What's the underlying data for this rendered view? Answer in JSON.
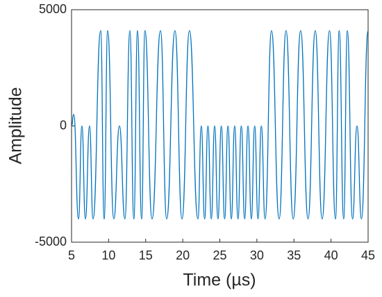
{
  "chart_data": {
    "type": "line",
    "xlabel": "Time (µs)",
    "ylabel": "Amplitude",
    "xlim": [
      5,
      45
    ],
    "xticks": [
      5,
      10,
      15,
      20,
      25,
      30,
      35,
      40,
      45
    ],
    "ylim": [
      -5000,
      5000
    ],
    "yticks": [
      -5000,
      0,
      5000
    ],
    "series": [
      {
        "color": "#0072bd",
        "x": [
          5,
          5.3,
          5.94,
          6.4,
          6.87,
          7.43,
          7.9,
          8.93,
          9.4,
          9.87,
          10.7,
          11.46,
          12.2,
          12.87,
          13.4,
          13.9,
          14.45,
          14.9,
          15.86,
          17.0,
          17.83,
          18.95,
          19.9,
          20.9,
          22.05,
          22.5,
          22.95,
          23.4,
          23.85,
          24.3,
          24.75,
          25.2,
          25.65,
          26.1,
          26.55,
          27.0,
          27.45,
          27.9,
          28.35,
          28.8,
          29.25,
          29.7,
          30.15,
          30.6,
          31.1,
          31.97,
          33.0,
          33.93,
          34.9,
          35.9,
          36.9,
          37.87,
          38.8,
          39.8,
          40.6,
          41.1,
          41.7,
          42.2,
          42.9,
          43.5,
          44.1,
          45
        ],
        "values": [
          0,
          500,
          -4000,
          0,
          -4000,
          0,
          -4000,
          4100,
          -4000,
          4100,
          -4000,
          0,
          -4000,
          4100,
          -4000,
          4100,
          -4000,
          4100,
          -4000,
          4100,
          -4000,
          4100,
          -4000,
          4100,
          -4000,
          0,
          -4000,
          0,
          -4000,
          0,
          -4000,
          0,
          -4000,
          0,
          -4000,
          0,
          -4000,
          0,
          -4000,
          0,
          -4000,
          0,
          -4000,
          0,
          -4000,
          4100,
          -4000,
          4100,
          -4000,
          4100,
          -4000,
          4100,
          -4000,
          4100,
          -4000,
          4100,
          -4000,
          4100,
          -4000,
          0,
          -4000,
          4100
        ]
      }
    ]
  }
}
